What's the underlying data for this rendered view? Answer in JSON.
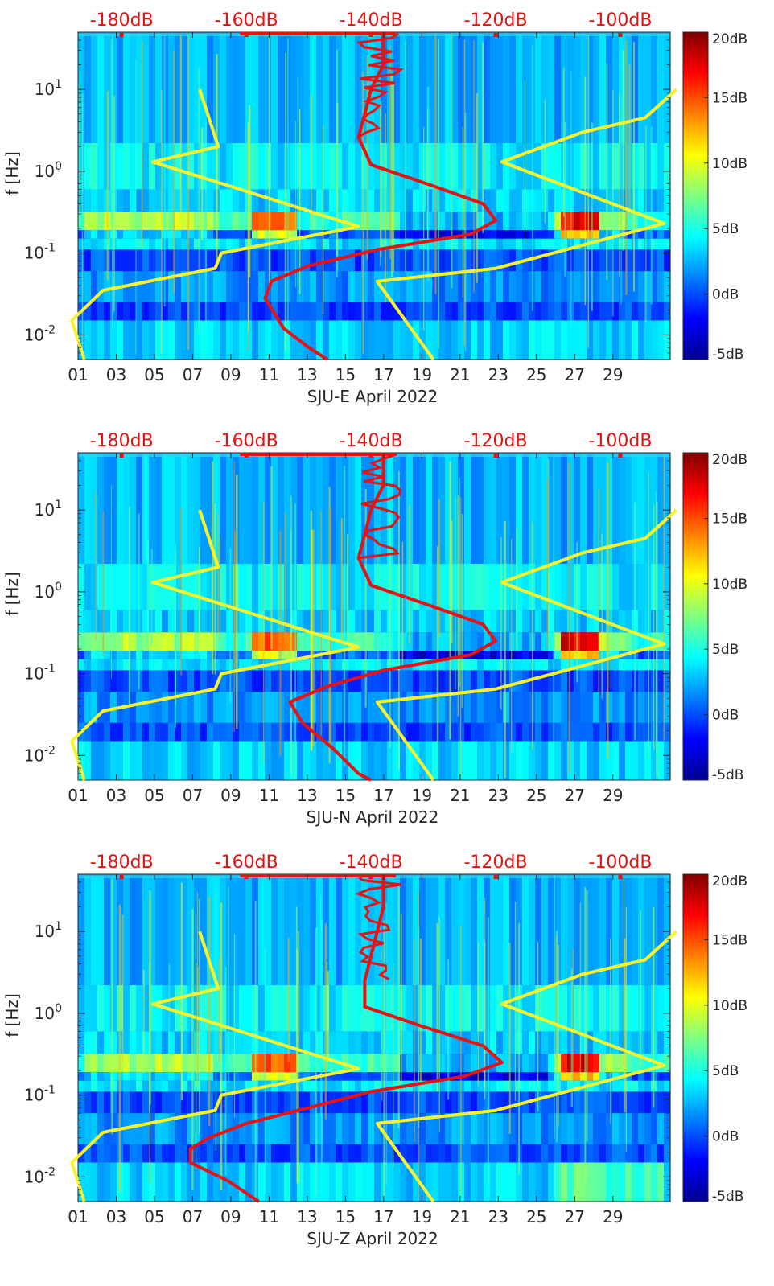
{
  "chart_data": [
    {
      "type": "heatmap",
      "title": "",
      "xlabel": "SJU-E April 2022",
      "ylabel": "f [Hz]",
      "x_ticks": [
        "01",
        "03",
        "05",
        "07",
        "09",
        "11",
        "13",
        "15",
        "17",
        "19",
        "21",
        "23",
        "25",
        "27",
        "29"
      ],
      "y_ticks": [
        "10^-2",
        "10^-1",
        "10^0",
        "10^1"
      ],
      "xlim_days": [
        1,
        32
      ],
      "ylim_hz": [
        0.005,
        50
      ],
      "top_axis_labels": [
        "-180dB",
        "-160dB",
        "-140dB",
        "-120dB",
        "-100dB"
      ],
      "top_axis_range_db": [
        -187,
        -92
      ],
      "colorbar": {
        "range_db": [
          -5,
          20
        ],
        "ticks": [
          "20dB",
          "15dB",
          "10dB",
          "5dB",
          "0dB",
          "-5dB"
        ]
      },
      "noise_models": {
        "name": "Peterson NLNM / NHNM (yellow)",
        "nlnm": [
          [
            -167.5,
            10
          ],
          [
            -164.5,
            2
          ],
          [
            -175,
            1.3
          ],
          [
            -142,
            0.21
          ],
          [
            -164,
            0.1
          ],
          [
            -165,
            0.065
          ],
          [
            -183,
            0.035
          ],
          [
            -188,
            0.015
          ],
          [
            -186,
            0.005
          ]
        ],
        "nhnm": [
          [
            -91,
            10
          ],
          [
            -96,
            4.5
          ],
          [
            -106,
            3
          ],
          [
            -119,
            1.3
          ],
          [
            -93,
            0.23
          ],
          [
            -120,
            0.065
          ],
          [
            -139,
            0.045
          ],
          [
            -130,
            0.005
          ]
        ]
      },
      "median_psd_db": [
        [
          -138,
          48
        ],
        [
          -138,
          20
        ],
        [
          -140,
          10
        ],
        [
          -141,
          5
        ],
        [
          -142,
          2.6
        ],
        [
          -140,
          1.2
        ],
        [
          -131,
          0.7
        ],
        [
          -122,
          0.4
        ],
        [
          -120,
          0.25
        ],
        [
          -124,
          0.17
        ],
        [
          -139,
          0.11
        ],
        [
          -150,
          0.07
        ],
        [
          -156,
          0.045
        ],
        [
          -157,
          0.028
        ],
        [
          -154,
          0.012
        ],
        [
          -150,
          0.007
        ],
        [
          -147,
          0.005
        ]
      ]
    },
    {
      "type": "heatmap",
      "title": "",
      "xlabel": "SJU-N April 2022",
      "ylabel": "f [Hz]",
      "x_ticks": [
        "01",
        "03",
        "05",
        "07",
        "09",
        "11",
        "13",
        "15",
        "17",
        "19",
        "21",
        "23",
        "25",
        "27",
        "29"
      ],
      "y_ticks": [
        "10^-2",
        "10^-1",
        "10^0",
        "10^1"
      ],
      "xlim_days": [
        1,
        32
      ],
      "ylim_hz": [
        0.005,
        50
      ],
      "top_axis_labels": [
        "-180dB",
        "-160dB",
        "-140dB",
        "-120dB",
        "-100dB"
      ],
      "top_axis_range_db": [
        -187,
        -92
      ],
      "colorbar": {
        "range_db": [
          -5,
          20
        ],
        "ticks": [
          "20dB",
          "15dB",
          "10dB",
          "5dB",
          "0dB",
          "-5dB"
        ]
      },
      "noise_models": {
        "name": "Peterson NLNM / NHNM (yellow)",
        "nlnm": [
          [
            -167.5,
            10
          ],
          [
            -164.5,
            2
          ],
          [
            -175,
            1.3
          ],
          [
            -142,
            0.21
          ],
          [
            -164,
            0.1
          ],
          [
            -165,
            0.065
          ],
          [
            -183,
            0.035
          ],
          [
            -188,
            0.015
          ],
          [
            -186,
            0.005
          ]
        ],
        "nhnm": [
          [
            -91,
            10
          ],
          [
            -96,
            4.5
          ],
          [
            -106,
            3
          ],
          [
            -119,
            1.3
          ],
          [
            -93,
            0.23
          ],
          [
            -120,
            0.065
          ],
          [
            -139,
            0.045
          ],
          [
            -130,
            0.005
          ]
        ]
      },
      "median_psd_db": [
        [
          -138,
          48
        ],
        [
          -138,
          20
        ],
        [
          -140,
          10
        ],
        [
          -141,
          5
        ],
        [
          -142,
          2.6
        ],
        [
          -140,
          1.2
        ],
        [
          -131,
          0.7
        ],
        [
          -122,
          0.4
        ],
        [
          -120,
          0.25
        ],
        [
          -124,
          0.17
        ],
        [
          -138,
          0.11
        ],
        [
          -147,
          0.07
        ],
        [
          -153,
          0.045
        ],
        [
          -151,
          0.025
        ],
        [
          -146,
          0.012
        ],
        [
          -142,
          0.006
        ],
        [
          -140,
          0.005
        ]
      ]
    },
    {
      "type": "heatmap",
      "title": "",
      "xlabel": "SJU-Z April 2022",
      "ylabel": "f [Hz]",
      "x_ticks": [
        "01",
        "03",
        "05",
        "07",
        "09",
        "11",
        "13",
        "15",
        "17",
        "19",
        "21",
        "23",
        "25",
        "27",
        "29"
      ],
      "y_ticks": [
        "10^-2",
        "10^-1",
        "10^0",
        "10^1"
      ],
      "xlim_days": [
        1,
        32
      ],
      "ylim_hz": [
        0.005,
        50
      ],
      "top_axis_labels": [
        "-180dB",
        "-160dB",
        "-140dB",
        "-120dB",
        "-100dB"
      ],
      "top_axis_range_db": [
        -187,
        -92
      ],
      "colorbar": {
        "range_db": [
          -5,
          20
        ],
        "ticks": [
          "20dB",
          "15dB",
          "10dB",
          "5dB",
          "0dB",
          "-5dB"
        ]
      },
      "noise_models": {
        "name": "Peterson NLNM / NHNM (yellow)",
        "nlnm": [
          [
            -167.5,
            10
          ],
          [
            -164.5,
            2
          ],
          [
            -175,
            1.3
          ],
          [
            -142,
            0.21
          ],
          [
            -164,
            0.1
          ],
          [
            -165,
            0.065
          ],
          [
            -183,
            0.035
          ],
          [
            -188,
            0.015
          ],
          [
            -186,
            0.005
          ]
        ],
        "nhnm": [
          [
            -91,
            10
          ],
          [
            -96,
            4.5
          ],
          [
            -106,
            3
          ],
          [
            -119,
            1.3
          ],
          [
            -93,
            0.23
          ],
          [
            -120,
            0.065
          ],
          [
            -139,
            0.045
          ],
          [
            -130,
            0.005
          ]
        ]
      },
      "median_psd_db": [
        [
          -138,
          48
        ],
        [
          -138,
          20
        ],
        [
          -139,
          10
        ],
        [
          -140,
          5
        ],
        [
          -141,
          2.5
        ],
        [
          -141,
          1.2
        ],
        [
          -132,
          0.7
        ],
        [
          -122,
          0.4
        ],
        [
          -119,
          0.25
        ],
        [
          -125,
          0.17
        ],
        [
          -140,
          0.11
        ],
        [
          -150,
          0.07
        ],
        [
          -160,
          0.045
        ],
        [
          -166,
          0.03
        ],
        [
          -169,
          0.022
        ],
        [
          -169,
          0.015
        ],
        [
          -163,
          0.009
        ],
        [
          -158,
          0.005
        ]
      ]
    }
  ],
  "colors": {
    "nlnm": "#f8f22e",
    "median": "#e81212",
    "top_label": "#e81010"
  }
}
